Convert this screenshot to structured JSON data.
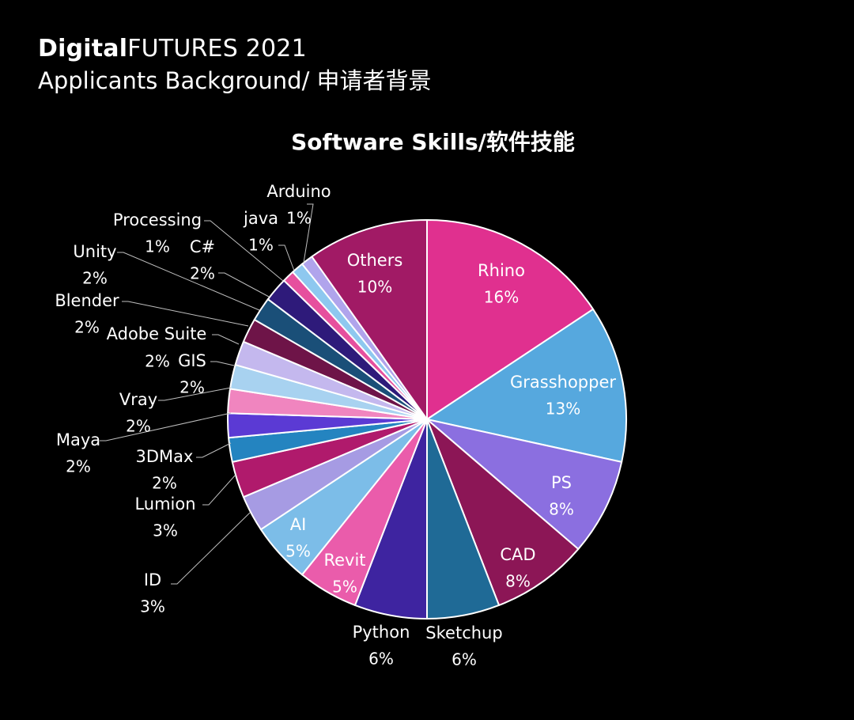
{
  "header": {
    "brand_bold": "Digital",
    "brand_light": "FUTURES",
    "brand_year": "2021",
    "subtitle": "Applicants Background/ 申请者背景"
  },
  "chart_data": {
    "type": "pie",
    "title": "Software Skills/软件技能",
    "slices": [
      {
        "label": "Rhino",
        "value": 16,
        "value_label": "16%",
        "color": "#e0308f"
      },
      {
        "label": "Grasshopper",
        "value": 13,
        "value_label": "13%",
        "color": "#56a8de"
      },
      {
        "label": "PS",
        "value": 8,
        "value_label": "8%",
        "color": "#8b6fe0"
      },
      {
        "label": "CAD",
        "value": 8,
        "value_label": "8%",
        "color": "#8c1656"
      },
      {
        "label": "Sketchup",
        "value": 6,
        "value_label": "6%",
        "color": "#1f6a96"
      },
      {
        "label": "Python",
        "value": 6,
        "value_label": "6%",
        "color": "#3e24a0"
      },
      {
        "label": "Revit",
        "value": 5,
        "value_label": "5%",
        "color": "#ea5cab"
      },
      {
        "label": "AI",
        "value": 5,
        "value_label": "5%",
        "color": "#7cbde8"
      },
      {
        "label": "ID",
        "value": 3,
        "value_label": "3%",
        "color": "#a69be3"
      },
      {
        "label": "Lumion",
        "value": 3,
        "value_label": "3%",
        "color": "#b01a6c"
      },
      {
        "label": "3DMax",
        "value": 2,
        "value_label": "2%",
        "color": "#2484c0"
      },
      {
        "label": "Maya",
        "value": 2,
        "value_label": "2%",
        "color": "#5b3ad4"
      },
      {
        "label": "Vray",
        "value": 2,
        "value_label": "2%",
        "color": "#f085bf"
      },
      {
        "label": "GIS",
        "value": 2,
        "value_label": "2%",
        "color": "#a8d2f0"
      },
      {
        "label": "Adobe Suite",
        "value": 2,
        "value_label": "2%",
        "color": "#c4b8ee"
      },
      {
        "label": "Blender",
        "value": 2,
        "value_label": "2%",
        "color": "#6e1448"
      },
      {
        "label": "Unity",
        "value": 2,
        "value_label": "2%",
        "color": "#1a4f78"
      },
      {
        "label": "C#",
        "value": 2,
        "value_label": "2%",
        "color": "#2e1a7a"
      },
      {
        "label": "Processing",
        "value": 1,
        "value_label": "1%",
        "color": "#e6509e"
      },
      {
        "label": "java",
        "value": 1,
        "value_label": "1%",
        "color": "#8ec8ef"
      },
      {
        "label": "Arduino",
        "value": 1,
        "value_label": "1%",
        "color": "#b0a4ec"
      },
      {
        "label": "Others",
        "value": 10,
        "value_label": "10%",
        "color": "#a11a65"
      }
    ]
  }
}
